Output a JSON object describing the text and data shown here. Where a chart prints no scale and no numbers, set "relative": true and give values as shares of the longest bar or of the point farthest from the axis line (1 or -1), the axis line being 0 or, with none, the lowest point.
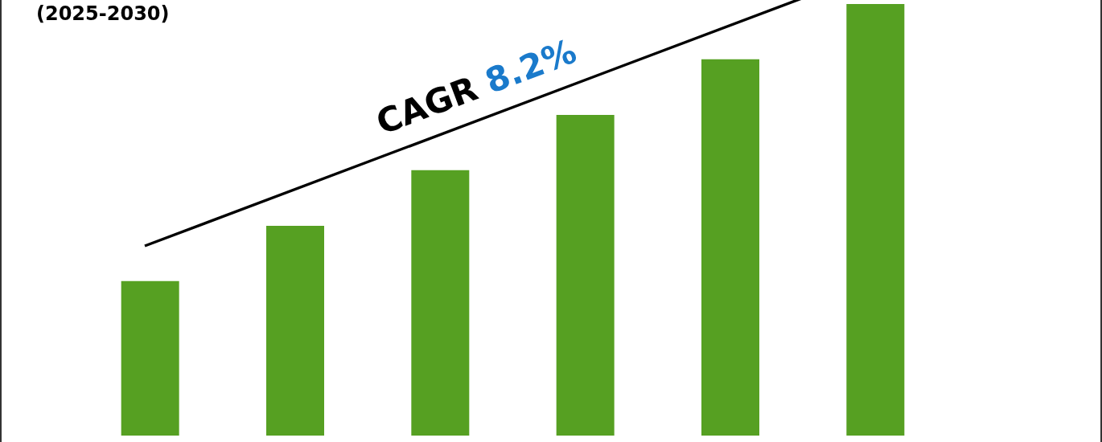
{
  "chart_data": {
    "type": "bar",
    "title": "(2025-2030)",
    "categories": [
      null,
      null,
      null,
      null,
      null,
      null
    ],
    "values": [
      0.358,
      0.486,
      0.615,
      0.743,
      0.872,
      1
    ],
    "color": "#56a022",
    "relative": true,
    "grid": false,
    "annotations": [
      "CAGR 8.2%"
    ]
  }
}
